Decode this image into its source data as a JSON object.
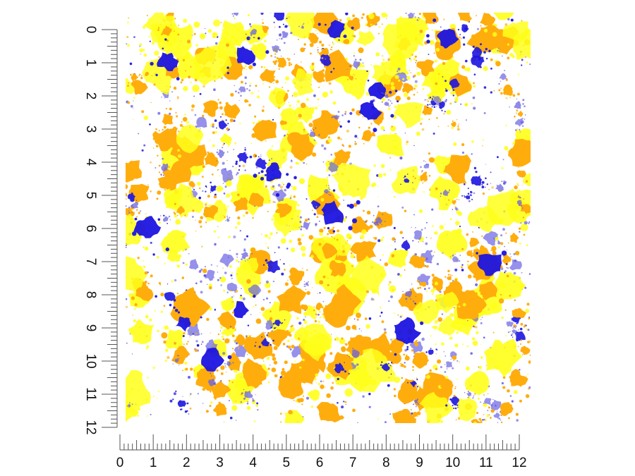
{
  "scale": {
    "unit_labels": [
      "0",
      "1",
      "2",
      "3",
      "4",
      "5",
      "6",
      "7",
      "8",
      "9",
      "10",
      "11",
      "12"
    ],
    "minor_ticks_per_unit": 8
  },
  "swatch": {
    "colors": {
      "background": "#ffffff",
      "orange": "#ffad0d",
      "yellow": "#ffff1a",
      "blue": "#1c14e0",
      "light_blue": "#6a62e2",
      "ruler": "#555555"
    }
  }
}
